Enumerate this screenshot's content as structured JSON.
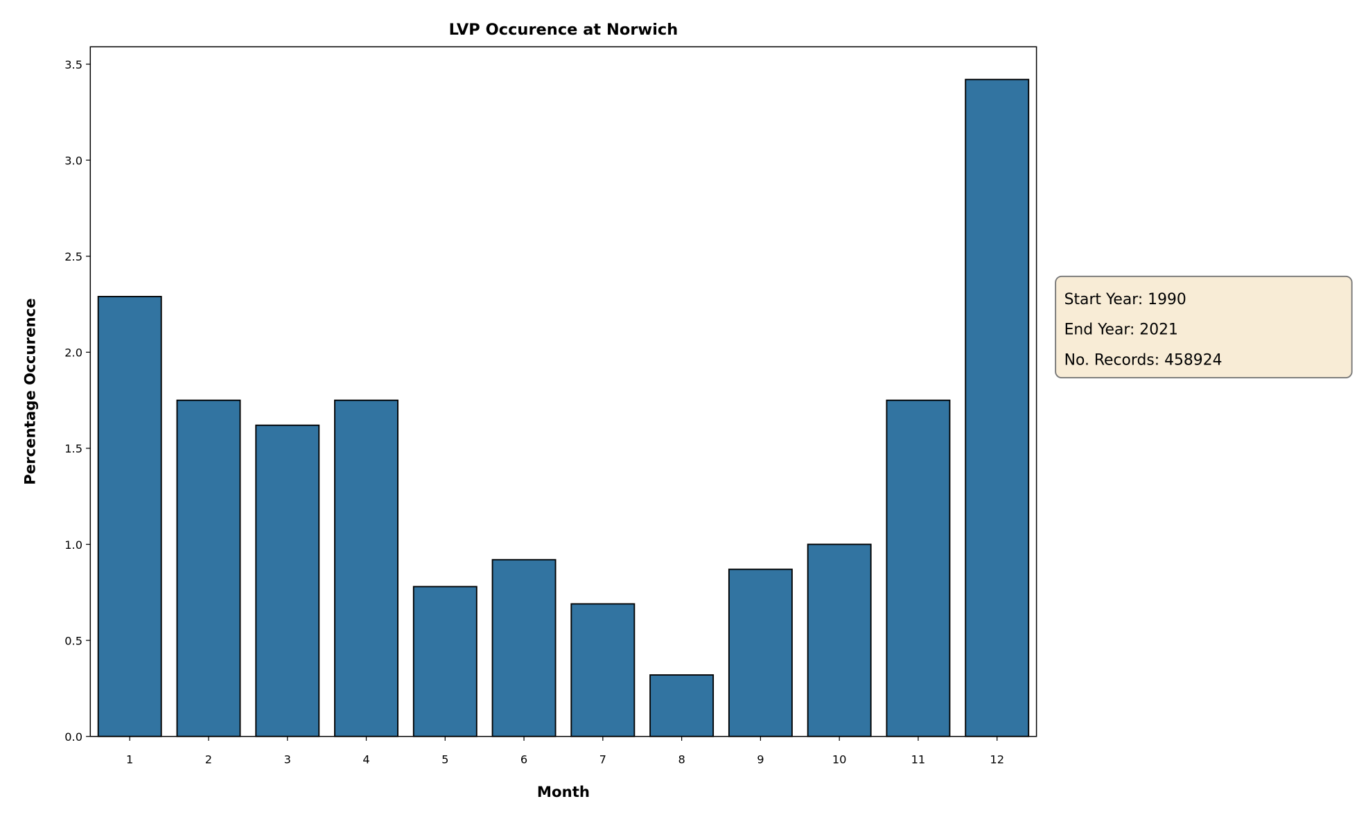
{
  "chart_data": {
    "type": "bar",
    "title": "LVP Occurence at Norwich",
    "xlabel": "Month",
    "ylabel": "Percentage Occurence",
    "categories": [
      "1",
      "2",
      "3",
      "4",
      "5",
      "6",
      "7",
      "8",
      "9",
      "10",
      "11",
      "12"
    ],
    "values": [
      2.29,
      1.75,
      1.62,
      1.75,
      0.78,
      0.92,
      0.69,
      0.32,
      0.87,
      1.0,
      1.75,
      3.42
    ],
    "ylim": [
      0,
      3.6
    ],
    "yticks": [
      "0.0",
      "0.5",
      "1.0",
      "1.5",
      "2.0",
      "2.5",
      "3.0",
      "3.5"
    ],
    "grid": false,
    "bar_color": "#3274a1",
    "edge_color": "#000000",
    "annotation": {
      "lines": [
        "Start Year: 1990",
        "End Year: 2021",
        "No. Records: 458924"
      ],
      "background": "#f8ecd6"
    }
  }
}
